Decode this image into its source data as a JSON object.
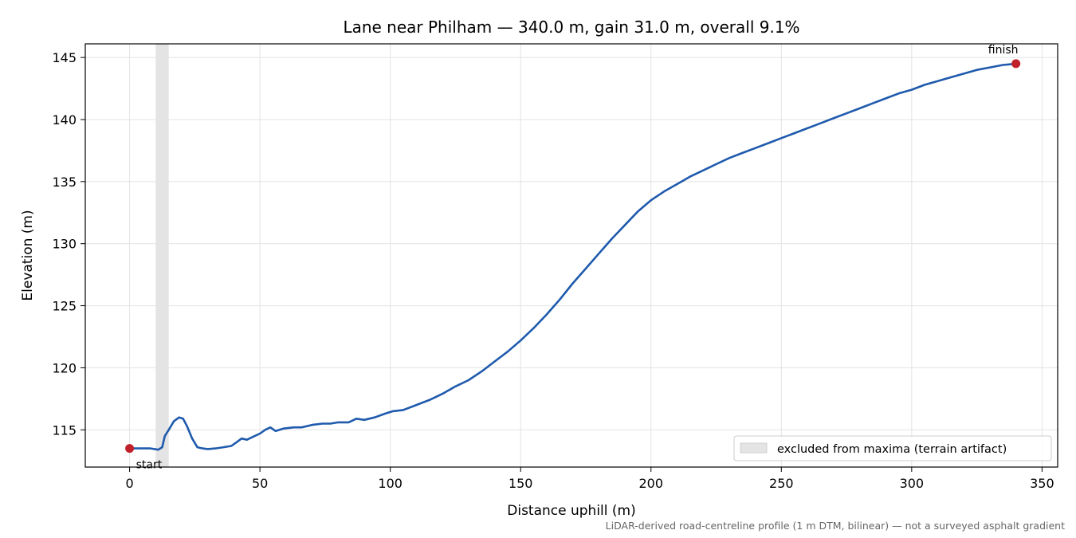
{
  "chart_data": {
    "type": "line",
    "title": "Lane near Philham — 340.0 m, gain 31.0 m, overall 9.1%",
    "xlabel": "Distance uphill (m)",
    "ylabel": "Elevation (m)",
    "xlim": [
      -17,
      356
    ],
    "ylim": [
      112,
      146.1
    ],
    "x_ticks": [
      0,
      50,
      100,
      150,
      200,
      250,
      300,
      350
    ],
    "y_ticks": [
      115,
      120,
      125,
      130,
      135,
      140,
      145
    ],
    "x_tick_labels": [
      "0",
      "50",
      "100",
      "150",
      "200",
      "250",
      "300",
      "350"
    ],
    "y_tick_labels": [
      "115",
      "120",
      "125",
      "130",
      "135",
      "140",
      "145"
    ],
    "grid": true,
    "legend_position": "lower-right",
    "series": [
      {
        "color": "#1f5aad",
        "points": [
          [
            0,
            113.5
          ],
          [
            3,
            113.5
          ],
          [
            8,
            113.5
          ],
          [
            11,
            113.4
          ],
          [
            12.5,
            113.6
          ],
          [
            13.5,
            114.5
          ],
          [
            15,
            115.0
          ],
          [
            17,
            115.7
          ],
          [
            19,
            116.0
          ],
          [
            20.5,
            115.9
          ],
          [
            22,
            115.3
          ],
          [
            24,
            114.3
          ],
          [
            26,
            113.6
          ],
          [
            28,
            113.5
          ],
          [
            30,
            113.45
          ],
          [
            33,
            113.5
          ],
          [
            36,
            113.6
          ],
          [
            39,
            113.7
          ],
          [
            41,
            114.0
          ],
          [
            43,
            114.3
          ],
          [
            45,
            114.2
          ],
          [
            47,
            114.4
          ],
          [
            50,
            114.7
          ],
          [
            52,
            115.0
          ],
          [
            54,
            115.2
          ],
          [
            56,
            114.9
          ],
          [
            59,
            115.1
          ],
          [
            63,
            115.2
          ],
          [
            66,
            115.2
          ],
          [
            70,
            115.4
          ],
          [
            74,
            115.5
          ],
          [
            77,
            115.5
          ],
          [
            80,
            115.6
          ],
          [
            84,
            115.6
          ],
          [
            87,
            115.9
          ],
          [
            90,
            115.8
          ],
          [
            94,
            116.0
          ],
          [
            98,
            116.3
          ],
          [
            101,
            116.5
          ],
          [
            105,
            116.6
          ],
          [
            110,
            117.0
          ],
          [
            115,
            117.4
          ],
          [
            120,
            117.9
          ],
          [
            125,
            118.5
          ],
          [
            130,
            119.0
          ],
          [
            135,
            119.7
          ],
          [
            140,
            120.5
          ],
          [
            145,
            121.3
          ],
          [
            150,
            122.2
          ],
          [
            155,
            123.2
          ],
          [
            160,
            124.3
          ],
          [
            165,
            125.5
          ],
          [
            170,
            126.8
          ],
          [
            175,
            128.0
          ],
          [
            180,
            129.2
          ],
          [
            185,
            130.4
          ],
          [
            190,
            131.5
          ],
          [
            195,
            132.6
          ],
          [
            200,
            133.5
          ],
          [
            205,
            134.2
          ],
          [
            210,
            134.8
          ],
          [
            215,
            135.4
          ],
          [
            220,
            135.9
          ],
          [
            225,
            136.4
          ],
          [
            230,
            136.9
          ],
          [
            235,
            137.3
          ],
          [
            240,
            137.7
          ],
          [
            245,
            138.1
          ],
          [
            250,
            138.5
          ],
          [
            255,
            138.9
          ],
          [
            260,
            139.3
          ],
          [
            265,
            139.7
          ],
          [
            270,
            140.1
          ],
          [
            275,
            140.5
          ],
          [
            280,
            140.9
          ],
          [
            285,
            141.3
          ],
          [
            290,
            141.7
          ],
          [
            295,
            142.1
          ],
          [
            300,
            142.4
          ],
          [
            305,
            142.8
          ],
          [
            310,
            143.1
          ],
          [
            315,
            143.4
          ],
          [
            320,
            143.7
          ],
          [
            325,
            144.0
          ],
          [
            330,
            144.2
          ],
          [
            335,
            144.4
          ],
          [
            340,
            144.5
          ]
        ]
      }
    ],
    "markers": [
      {
        "x": 0,
        "y": 113.5,
        "label": "start",
        "color": "#c0202a"
      },
      {
        "x": 340,
        "y": 144.5,
        "label": "finish",
        "color": "#c0202a"
      }
    ],
    "excluded_band": {
      "x_start": 10,
      "x_end": 15,
      "color": "#e4e4e4"
    },
    "legend": [
      {
        "label": "excluded from maxima (terrain artifact)",
        "swatch_color": "#e4e4e4"
      }
    ],
    "footnote": "LiDAR-derived road-centreline profile (1 m DTM, bilinear) — not a surveyed asphalt gradient"
  }
}
